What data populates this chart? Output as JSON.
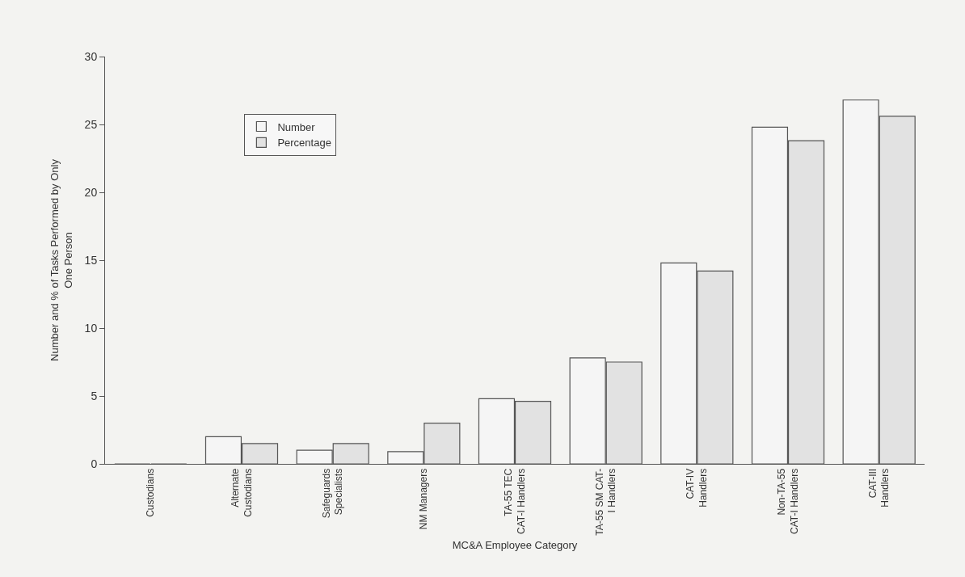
{
  "chart_data": {
    "type": "bar",
    "xlabel": "MC&A Employee Category",
    "ylabel": "Number and % of Tasks Performed by Only\nOne Person",
    "categories": [
      "Custodians",
      "Alternate\nCustodians",
      "Safeguards\nSpecialists",
      "NM Managers",
      "TA-55 TEC\nCAT-I Handlers",
      "TA-55 SM CAT-\nI Handlers",
      "CAT-IV\nHandlers",
      "Non-TA-55\nCAT-I Handlers",
      "CAT-III\nHandlers"
    ],
    "series": [
      {
        "name": "Number",
        "color": "#f5f5f5",
        "values": [
          0,
          2,
          1,
          0.9,
          4.8,
          7.8,
          14.8,
          24.8,
          26.8
        ]
      },
      {
        "name": "Percentage",
        "color": "#e2e2e2",
        "values": [
          0,
          1.5,
          1.5,
          3,
          4.6,
          7.5,
          14.2,
          23.8,
          25.6
        ]
      }
    ],
    "ylim": [
      0,
      30
    ],
    "yticks": [
      0,
      5,
      10,
      15,
      20,
      25,
      30
    ],
    "grid": false,
    "legend": "top left"
  }
}
